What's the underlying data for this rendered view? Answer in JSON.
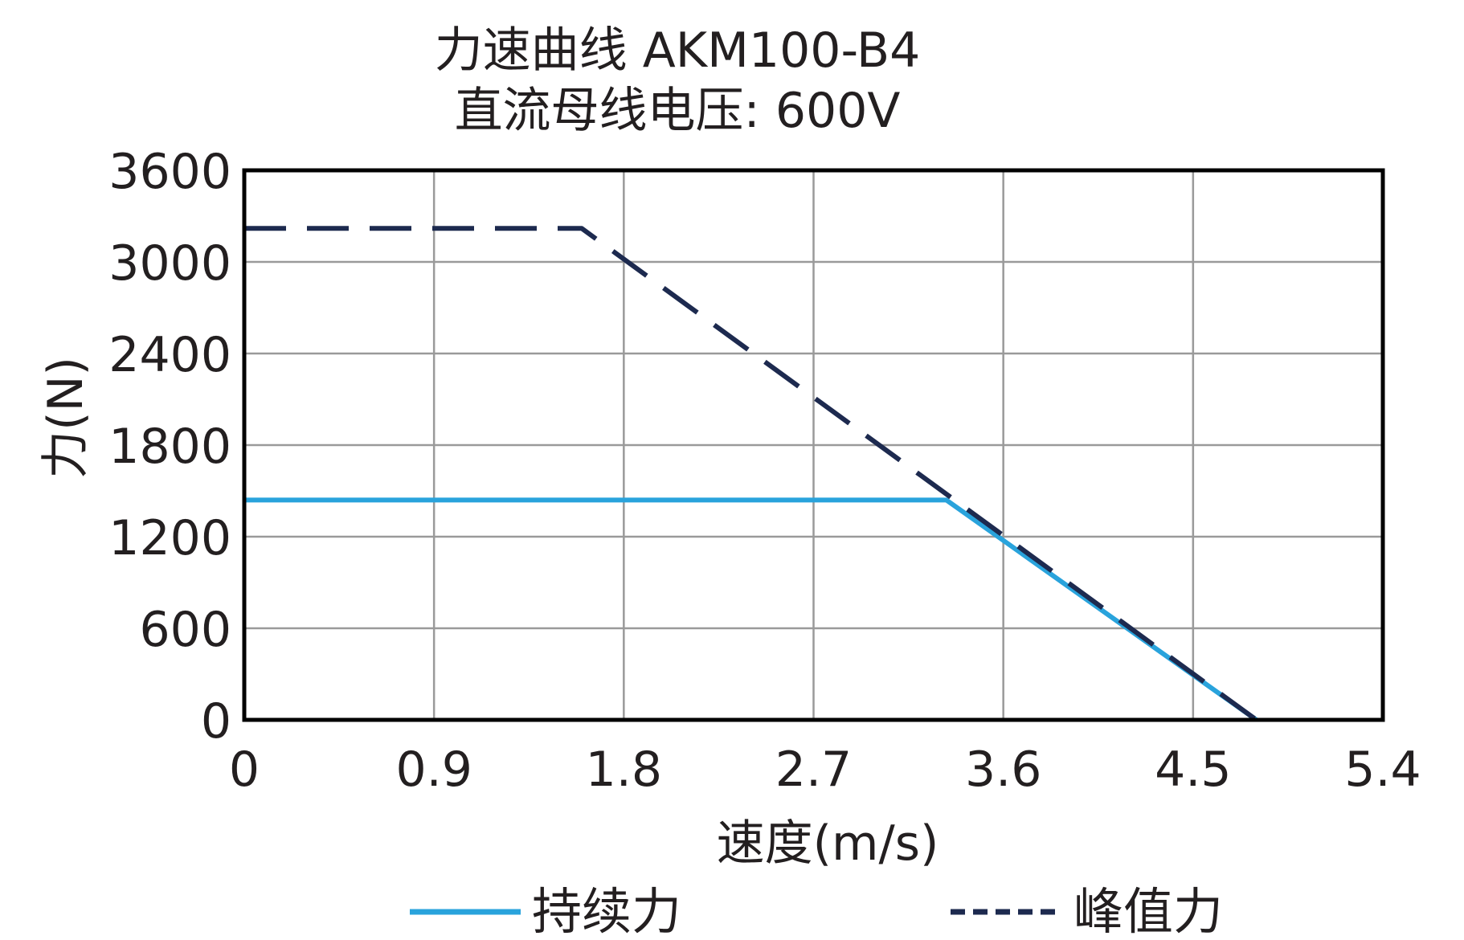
{
  "chart_data": {
    "type": "line",
    "title": "力速曲线 AKM100-B4",
    "subtitle": "直流母线电压: 600V",
    "xlabel": "速度(m/s)",
    "ylabel": "力(N)",
    "xlim": [
      0,
      5.4
    ],
    "ylim": [
      0,
      3600
    ],
    "xticks": [
      "0",
      "0.9",
      "1.8",
      "2.7",
      "3.6",
      "4.5",
      "5.4"
    ],
    "yticks": [
      "0",
      "600",
      "1200",
      "1800",
      "2400",
      "3000",
      "3600"
    ],
    "grid": true,
    "legend_position": "bottom",
    "series": [
      {
        "name": "持续力",
        "color": "#29a3dc",
        "style": "solid",
        "x": [
          0,
          3.33,
          4.8
        ],
        "y": [
          1440,
          1440,
          0
        ]
      },
      {
        "name": "峰值力",
        "color": "#1d2a4f",
        "style": "dashed",
        "x": [
          0,
          1.6,
          4.8
        ],
        "y": [
          3220,
          3220,
          0
        ]
      }
    ]
  }
}
